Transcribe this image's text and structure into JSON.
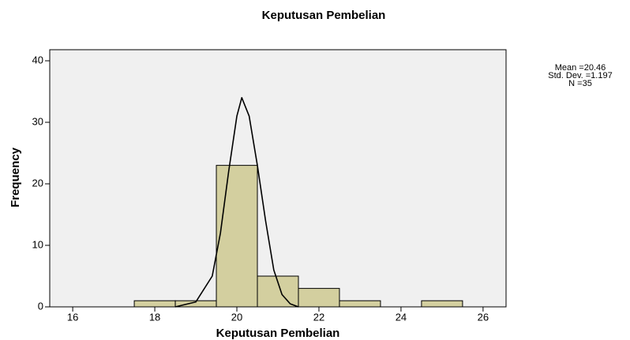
{
  "chart_data": {
    "type": "histogram",
    "title": "Keputusan Pembelian",
    "x_label": "Keputusan Pembelian",
    "y_label": "Frequency",
    "bins": [
      17.5,
      18.5,
      19.5,
      20.5,
      21.5,
      22.5,
      23.5,
      24.5,
      25.5
    ],
    "counts": [
      1,
      1,
      23,
      5,
      3,
      1,
      0,
      1
    ],
    "color": "#d3cf9f",
    "curve": {
      "x": [
        18.5,
        19.0,
        19.4,
        19.6,
        19.8,
        20.0,
        20.12,
        20.3,
        20.5,
        20.7,
        20.9,
        21.1,
        21.3,
        21.5
      ],
      "y": [
        0,
        0.8,
        5,
        12,
        22,
        31,
        34,
        31,
        23,
        14,
        6,
        2,
        0.5,
        0
      ]
    },
    "annotations": [
      "Mean =20.46",
      "Std. Dev. =1.197",
      "N =35"
    ],
    "xlim": [
      15.44,
      26.56
    ],
    "ylim": [
      0,
      41.8
    ],
    "xticks": [
      16,
      18,
      20,
      22,
      24,
      26
    ],
    "yticks": [
      0,
      10,
      20,
      30,
      40
    ]
  }
}
